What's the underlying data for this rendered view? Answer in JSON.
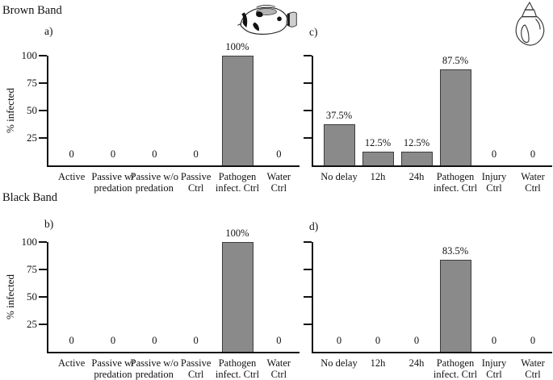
{
  "figure": {
    "groups": [
      "Brown Band",
      "Black Band"
    ],
    "ylabel": "% infected",
    "bar_color": "#8a8a8a",
    "bar_border_color": "#3d3d3d",
    "axis_color": "#111111",
    "icons": [
      "butterflyfish-icon",
      "snail-shell-icon"
    ]
  },
  "chart_data": [
    {
      "type": "bar",
      "panel": "a)",
      "group": "Brown Band",
      "ylabel": "% infected",
      "ylim": [
        0,
        100
      ],
      "yticks": [
        25,
        50,
        75,
        100
      ],
      "categories": [
        "Active",
        "Passive w/\npredation",
        "Passive w/o\npredation",
        "Passive\nCtrl",
        "Pathogen\ninfect. Ctrl",
        "Water\nCtrl"
      ],
      "values": [
        0,
        0,
        0,
        0,
        100,
        0
      ],
      "value_labels": [
        "0",
        "0",
        "0",
        "0",
        "100%",
        "0"
      ]
    },
    {
      "type": "bar",
      "panel": "b)",
      "group": "Black Band",
      "ylabel": "% infected",
      "ylim": [
        0,
        100
      ],
      "yticks": [
        25,
        50,
        75,
        100
      ],
      "categories": [
        "Active",
        "Passive w/\npredation",
        "Passive w/o\npredation",
        "Passive\nCtrl",
        "Pathogen\ninfect. Ctrl",
        "Water\nCtrl"
      ],
      "values": [
        0,
        0,
        0,
        0,
        100,
        0
      ],
      "value_labels": [
        "0",
        "0",
        "0",
        "0",
        "100%",
        "0"
      ]
    },
    {
      "type": "bar",
      "panel": "c)",
      "group": "Brown Band",
      "ylabel": "% infected",
      "ylim": [
        0,
        100
      ],
      "yticks": [
        25,
        50,
        75,
        100
      ],
      "categories": [
        "No delay",
        "12h",
        "24h",
        "Pathogen\ninfect. Ctrl",
        "Injury\nCtrl",
        "Water\nCtrl"
      ],
      "values": [
        37.5,
        12.5,
        12.5,
        87.5,
        0,
        0
      ],
      "value_labels": [
        "37.5%",
        "12.5%",
        "12.5%",
        "87.5%",
        "0",
        "0"
      ]
    },
    {
      "type": "bar",
      "panel": "d)",
      "group": "Black Band",
      "ylabel": "% infected",
      "ylim": [
        0,
        100
      ],
      "yticks": [
        25,
        50,
        75,
        100
      ],
      "categories": [
        "No delay",
        "12h",
        "24h",
        "Pathogen\ninfect. Ctrl",
        "Injury\nCtrl",
        "Water\nCtrl"
      ],
      "values": [
        0,
        0,
        0,
        83.5,
        0,
        0
      ],
      "value_labels": [
        "0",
        "0",
        "0",
        "83.5%",
        "0",
        "0"
      ]
    }
  ]
}
